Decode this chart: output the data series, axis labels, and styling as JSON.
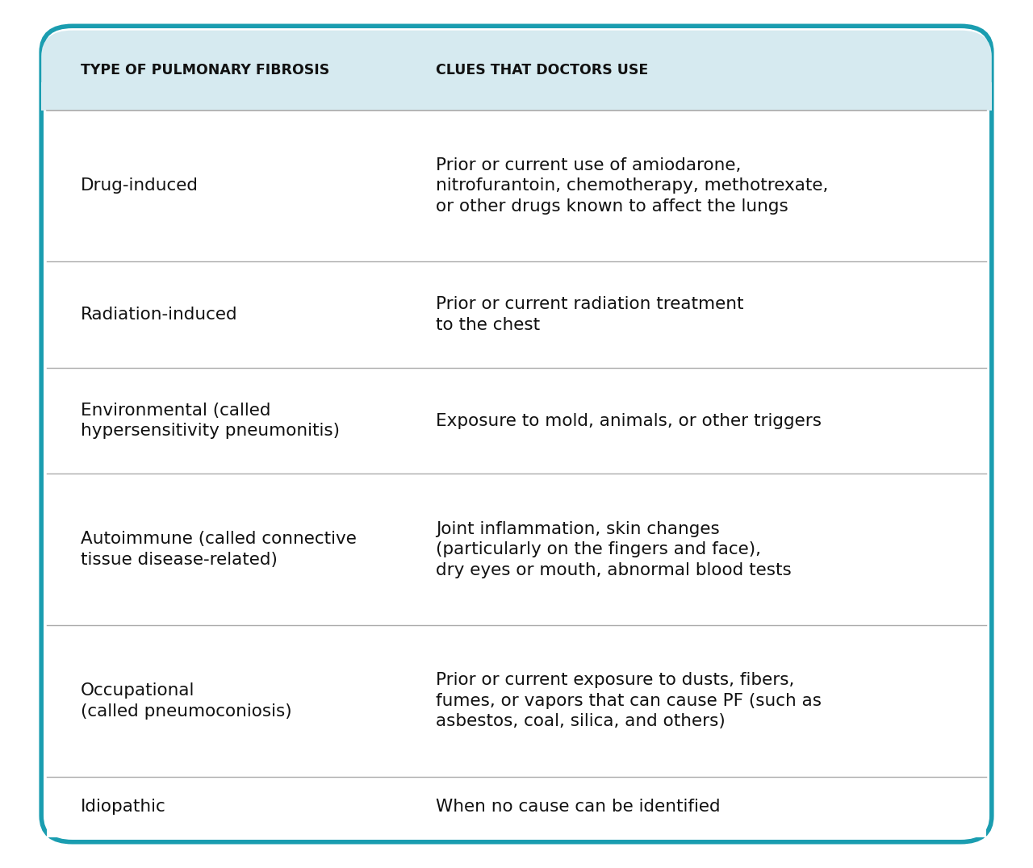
{
  "header_col1": "TYPE OF PULMONARY FIBROSIS",
  "header_col2": "CLUES THAT DOCTORS USE",
  "header_bg": "#d6eaf0",
  "header_text_color": "#111111",
  "body_bg": "#ffffff",
  "border_color": "#1a9db0",
  "divider_color": "#aaaaaa",
  "text_color": "#111111",
  "rows": [
    {
      "type": "Drug-induced",
      "clues": "Prior or current use of amiodarone,\nnitrofurantoin, chemotherapy, methotrexate,\nor other drugs known to affect the lungs"
    },
    {
      "type": "Radiation-induced",
      "clues": "Prior or current radiation treatment\nto the chest"
    },
    {
      "type": "Environmental (called\nhypersensitivity pneumonitis)",
      "clues": "Exposure to mold, animals, or other triggers"
    },
    {
      "type": "Autoimmune (called connective\ntissue disease-related)",
      "clues": "Joint inflammation, skin changes\n(particularly on the fingers and face),\ndry eyes or mouth, abnormal blood tests"
    },
    {
      "type": "Occupational\n(called pneumoconiosis)",
      "clues": "Prior or current exposure to dusts, fibers,\nfumes, or vapors that can cause PF (such as\nasbestos, coal, silica, and others)"
    },
    {
      "type": "Idiopathic",
      "clues": "When no cause can be identified"
    }
  ],
  "fig_width": 12.8,
  "fig_height": 10.76,
  "header_fontsize": 12.5,
  "body_fontsize": 15.5,
  "outer_border_color": "#1a9db0",
  "outer_bg_color": "#ffffff",
  "fig_bg_color": "#ffffff"
}
